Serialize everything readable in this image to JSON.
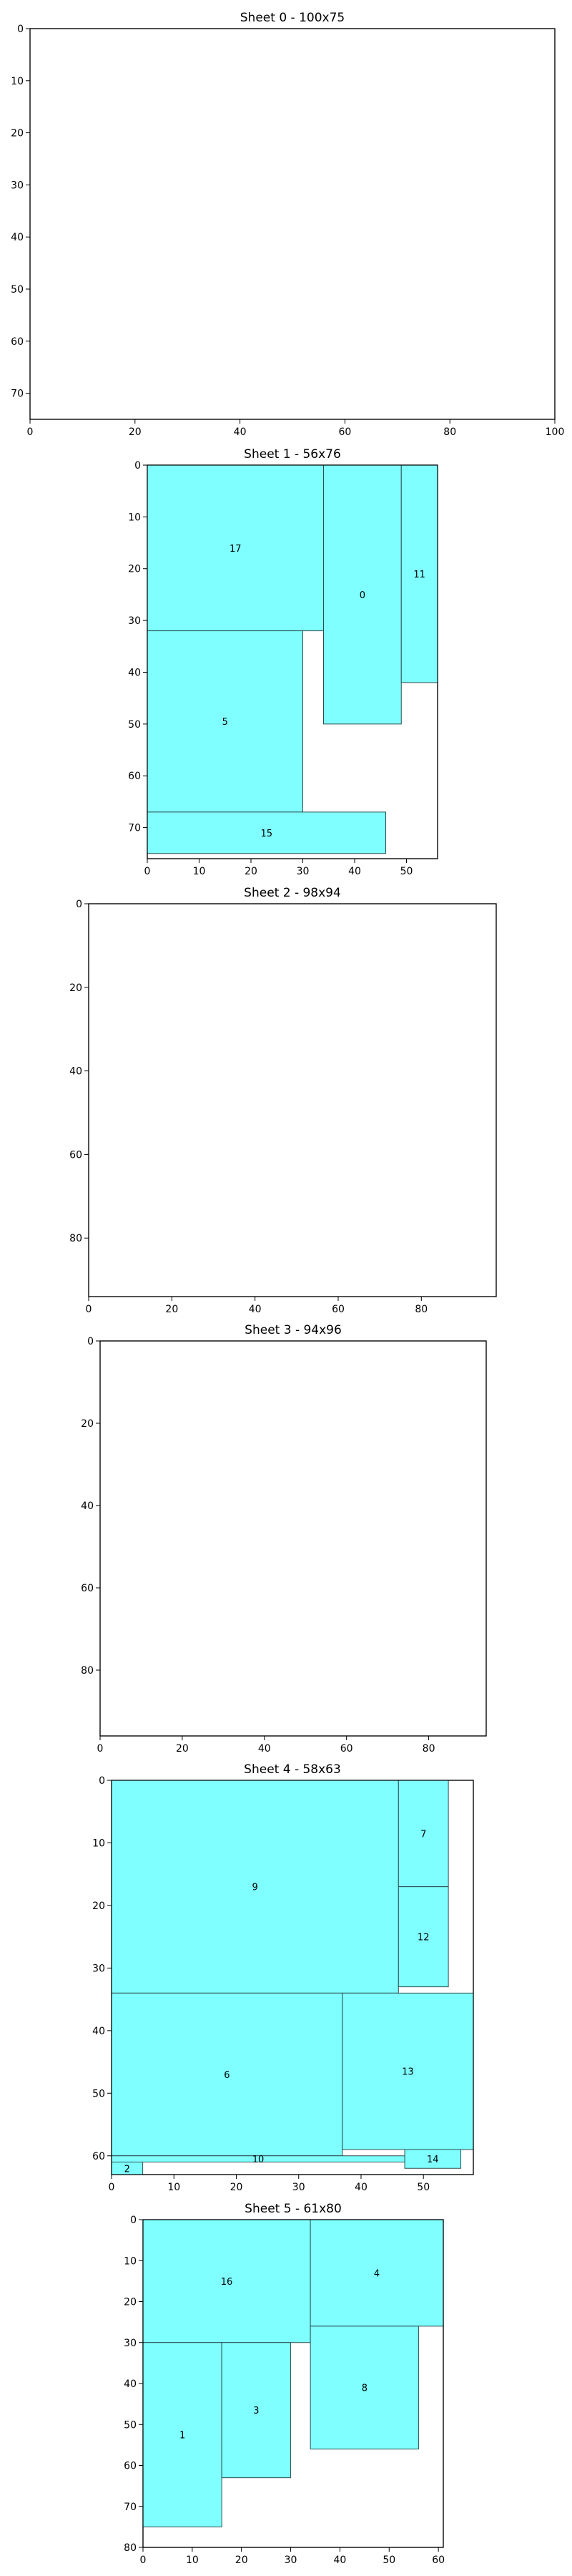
{
  "chart_data": [
    {
      "type": "packing-layout",
      "title": "Sheet 0 - 100x75",
      "width": 100,
      "height": 75,
      "xticks": [
        0,
        20,
        40,
        60,
        80,
        100
      ],
      "yticks": [
        0,
        10,
        20,
        30,
        40,
        50,
        60,
        70
      ],
      "pieces": []
    },
    {
      "type": "packing-layout",
      "title": "Sheet 1 - 56x76",
      "width": 56,
      "height": 76,
      "xticks": [
        0,
        10,
        20,
        30,
        40,
        50
      ],
      "yticks": [
        0,
        10,
        20,
        30,
        40,
        50,
        60,
        70
      ],
      "pieces": [
        {
          "id": "17",
          "x": 0,
          "y": 0,
          "w": 34,
          "h": 32
        },
        {
          "id": "0",
          "x": 34,
          "y": 0,
          "w": 15,
          "h": 50
        },
        {
          "id": "11",
          "x": 49,
          "y": 0,
          "w": 7,
          "h": 42
        },
        {
          "id": "5",
          "x": 0,
          "y": 32,
          "w": 30,
          "h": 35
        },
        {
          "id": "15",
          "x": 0,
          "y": 67,
          "w": 46,
          "h": 8
        }
      ]
    },
    {
      "type": "packing-layout",
      "title": "Sheet 2 - 98x94",
      "width": 98,
      "height": 94,
      "xticks": [
        0,
        20,
        40,
        60,
        80
      ],
      "yticks": [
        0,
        20,
        40,
        60,
        80
      ],
      "pieces": []
    },
    {
      "type": "packing-layout",
      "title": "Sheet 3 - 94x96",
      "width": 94,
      "height": 96,
      "xticks": [
        0,
        20,
        40,
        60,
        80
      ],
      "yticks": [
        0,
        20,
        40,
        60,
        80
      ],
      "pieces": []
    },
    {
      "type": "packing-layout",
      "title": "Sheet 4 - 58x63",
      "width": 58,
      "height": 63,
      "xticks": [
        0,
        10,
        20,
        30,
        40,
        50
      ],
      "yticks": [
        0,
        10,
        20,
        30,
        40,
        50,
        60
      ],
      "pieces": [
        {
          "id": "9",
          "x": 0,
          "y": 0,
          "w": 46,
          "h": 34
        },
        {
          "id": "7",
          "x": 46,
          "y": 0,
          "w": 8,
          "h": 17
        },
        {
          "id": "12",
          "x": 46,
          "y": 17,
          "w": 8,
          "h": 16
        },
        {
          "id": "6",
          "x": 0,
          "y": 34,
          "w": 37,
          "h": 26
        },
        {
          "id": "13",
          "x": 37,
          "y": 34,
          "w": 21,
          "h": 25
        },
        {
          "id": "10",
          "x": 0,
          "y": 60,
          "w": 47,
          "h": 1
        },
        {
          "id": "14",
          "x": 47,
          "y": 59,
          "w": 9,
          "h": 3
        },
        {
          "id": "2",
          "x": 0,
          "y": 61,
          "w": 5,
          "h": 2
        }
      ]
    },
    {
      "type": "packing-layout",
      "title": "Sheet 5 - 61x80",
      "width": 61,
      "height": 80,
      "xticks": [
        0,
        10,
        20,
        30,
        40,
        50,
        60
      ],
      "yticks": [
        0,
        10,
        20,
        30,
        40,
        50,
        60,
        70,
        80
      ],
      "pieces": [
        {
          "id": "16",
          "x": 0,
          "y": 0,
          "w": 34,
          "h": 30
        },
        {
          "id": "4",
          "x": 34,
          "y": 0,
          "w": 27,
          "h": 26
        },
        {
          "id": "1",
          "x": 0,
          "y": 30,
          "w": 16,
          "h": 45
        },
        {
          "id": "3",
          "x": 16,
          "y": 30,
          "w": 14,
          "h": 33
        },
        {
          "id": "8",
          "x": 34,
          "y": 26,
          "w": 22,
          "h": 30
        }
      ]
    }
  ],
  "colors": {
    "piece_fill": "#7fffff",
    "piece_stroke": "#2f4f4f",
    "frame_stroke": "#000000"
  }
}
